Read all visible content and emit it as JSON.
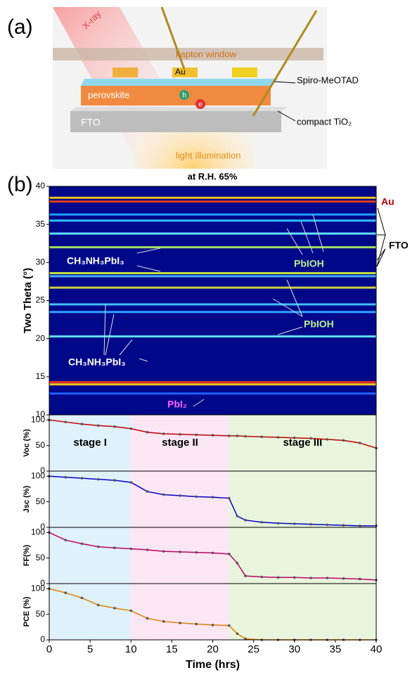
{
  "panel_a": {
    "label": "(a)",
    "labels": [
      "X-ray",
      "kapton window",
      "Au",
      "Spiro-MeOTAD",
      "perovskite",
      "h",
      "e",
      "compact TiO₂",
      "FTO",
      "light illumination"
    ]
  },
  "panel_b": {
    "label": "(b)"
  },
  "chart_data": [
    {
      "type": "heatmap",
      "title": "at R.H. 65%",
      "y_label": "Two Theta (°)",
      "background": "#00088a",
      "ylim": [
        10,
        40
      ],
      "yticks": [
        10,
        15,
        20,
        25,
        30,
        35,
        40
      ],
      "bands": [
        {
          "position": 38.5,
          "color": "#f0c020"
        },
        {
          "position": 38.0,
          "color": "#e04020"
        },
        {
          "position": 36.3,
          "color": "#20a0ff"
        },
        {
          "position": 35.5,
          "color": "#30c0ff"
        },
        {
          "position": 33.8,
          "color": "#60e0ff"
        },
        {
          "position": 32.0,
          "color": "#a0e060"
        },
        {
          "position": 28.6,
          "color": "#c0e040"
        },
        {
          "position": 28.2,
          "color": "#40b0ff"
        },
        {
          "position": 26.7,
          "color": "#d0d040"
        },
        {
          "position": 24.5,
          "color": "#40c0ff"
        },
        {
          "position": 23.5,
          "color": "#30a0ff"
        },
        {
          "position": 20.3,
          "color": "#60e0f0"
        },
        {
          "position": 14.3,
          "color": "#e03020"
        },
        {
          "position": 14.0,
          "color": "#f0c020"
        },
        {
          "position": 12.8,
          "color": "#2060ff"
        }
      ],
      "annotations": [
        {
          "text": "Au",
          "color": "#c00000"
        },
        {
          "text": "FTO",
          "color": "#000000"
        },
        {
          "text": "CH₃NH₃PbI₃",
          "color": "#ffffff"
        },
        {
          "text": "PbIOH",
          "color": "#b8f090"
        },
        {
          "text": "PbIOH",
          "color": "#b8f090"
        },
        {
          "text": "CH₃NH₃PbI₃",
          "color": "#ffffff"
        },
        {
          "text": "PbI₂",
          "color": "#ff60ff"
        }
      ]
    },
    {
      "type": "line",
      "y_label": "Voc (%)",
      "color": "#c00000",
      "stages": [
        {
          "name": "stage I",
          "start": 0,
          "end": 10,
          "color": "#dff1fb"
        },
        {
          "name": "stage II",
          "start": 10,
          "end": 22,
          "color": "#fbe6f4"
        },
        {
          "name": "stage III",
          "start": 22,
          "end": 40,
          "color": "#e8f5dc"
        }
      ],
      "x": [
        0,
        2,
        4,
        6,
        8,
        10,
        12,
        14,
        16,
        18,
        20,
        22,
        23,
        24,
        26,
        28,
        30,
        32,
        34,
        36,
        38,
        40
      ],
      "values": [
        100,
        96,
        92,
        89,
        87,
        83,
        76,
        73,
        72,
        71,
        70,
        69,
        69,
        68,
        67,
        66,
        65,
        64,
        62,
        60,
        55,
        45
      ],
      "xlim": [
        0,
        40
      ],
      "ylim": [
        0,
        110
      ],
      "yticks": [
        0,
        50,
        100
      ]
    },
    {
      "type": "line",
      "y_label": "Jsc (%)",
      "color": "#0000c8",
      "x": [
        0,
        2,
        4,
        6,
        8,
        10,
        12,
        14,
        16,
        18,
        20,
        22,
        23,
        24,
        26,
        28,
        30,
        32,
        34,
        36,
        38,
        40
      ],
      "values": [
        100,
        98,
        96,
        94,
        92,
        88,
        70,
        64,
        62,
        60,
        59,
        57,
        22,
        14,
        10,
        8,
        7,
        6,
        5,
        4,
        3,
        3
      ],
      "xlim": [
        0,
        40
      ],
      "ylim": [
        0,
        110
      ],
      "yticks": [
        0,
        50,
        100
      ]
    },
    {
      "type": "line",
      "y_label": "FF(%)",
      "color": "#c0006a",
      "x": [
        0,
        2,
        4,
        6,
        8,
        10,
        12,
        14,
        16,
        18,
        20,
        22,
        23,
        24,
        26,
        28,
        30,
        32,
        34,
        36,
        38,
        40
      ],
      "values": [
        100,
        85,
        78,
        72,
        70,
        68,
        66,
        63,
        62,
        61,
        60,
        58,
        40,
        15,
        13,
        12,
        12,
        11,
        11,
        10,
        9,
        7
      ],
      "xlim": [
        0,
        40
      ],
      "ylim": [
        0,
        110
      ],
      "yticks": [
        0,
        50,
        100
      ]
    },
    {
      "type": "line",
      "y_label": "PCE (%)",
      "color": "#e08000",
      "x_label": "Time (hrs)",
      "x": [
        0,
        2,
        4,
        6,
        8,
        10,
        12,
        14,
        16,
        18,
        20,
        22,
        23,
        24,
        26,
        28,
        30,
        32,
        34,
        36,
        38,
        40
      ],
      "values": [
        100,
        92,
        82,
        68,
        62,
        57,
        42,
        36,
        33,
        31,
        29,
        28,
        12,
        2,
        0,
        0,
        0,
        0,
        0,
        0,
        0,
        0
      ],
      "xlim": [
        0,
        40
      ],
      "ylim": [
        0,
        110
      ],
      "yticks": [
        0,
        50,
        100
      ],
      "xticks": [
        0,
        5,
        10,
        15,
        20,
        25,
        30,
        35,
        40
      ]
    }
  ]
}
